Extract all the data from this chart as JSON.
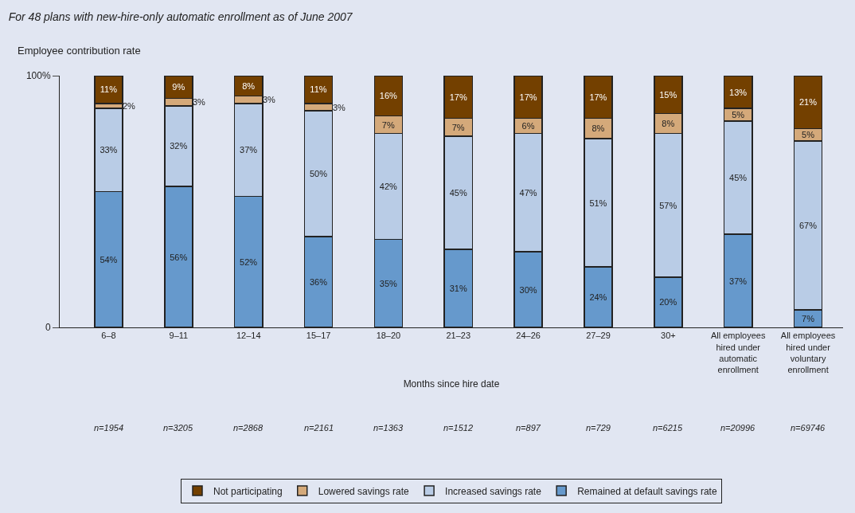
{
  "chart_data": {
    "type": "bar",
    "stacked": true,
    "title": "For 48 plans with new-hire-only automatic enrollment as of June 2007",
    "ylabel": "Employee contribution rate",
    "xlabel": "Months since hire date",
    "categories": [
      "6–8",
      "9–11",
      "12–14",
      "15–17",
      "18–20",
      "21–23",
      "24–26",
      "27–29",
      "30+",
      "All employees hired under automatic enrollment",
      "All employees hired under voluntary enrollment"
    ],
    "series": [
      {
        "name": "Remained at default savings rate",
        "color": "#6699cc",
        "values": [
          54,
          56,
          52,
          36,
          35,
          31,
          30,
          24,
          20,
          37,
          7
        ],
        "value_labels": [
          "54%",
          "56%",
          "52%",
          "36%",
          "35%",
          "31%",
          "30%",
          "24%",
          "20%",
          "37%",
          "7%"
        ]
      },
      {
        "name": "Increased savings rate",
        "color": "#b9cce6",
        "values": [
          33,
          32,
          37,
          50,
          42,
          45,
          47,
          51,
          57,
          45,
          67
        ],
        "value_labels": [
          "33%",
          "32%",
          "37%",
          "50%",
          "42%",
          "45%",
          "47%",
          "51%",
          "57%",
          "45%",
          "67%"
        ]
      },
      {
        "name": "Lowered savings rate",
        "color": "#d4a97a",
        "values": [
          2,
          3,
          3,
          3,
          7,
          7,
          6,
          8,
          8,
          5,
          5
        ],
        "value_labels": [
          "2%",
          "3%",
          "3%",
          "3%",
          "7%",
          "7%",
          "6%",
          "8%",
          "8%",
          "5%",
          "5%"
        ]
      },
      {
        "name": "Not participating",
        "color": "#734000",
        "values": [
          11,
          9,
          8,
          11,
          16,
          17,
          17,
          17,
          15,
          13,
          21
        ],
        "value_labels": [
          "11%",
          "9%",
          "8%",
          "11%",
          "16%",
          "17%",
          "17%",
          "17%",
          "15%",
          "13%",
          "21%"
        ]
      }
    ],
    "ylim": [
      0,
      100
    ],
    "yticks": [
      0,
      {
        "value": 100,
        "label": "100%"
      }
    ],
    "legend": "bottom",
    "annotations": [
      "n=1954",
      "n=3205",
      "n=2868",
      "n=2161",
      "n=1363",
      "n=1512",
      "n=897",
      "n=729",
      "n=6215",
      "n=20996",
      "n=69746"
    ]
  }
}
